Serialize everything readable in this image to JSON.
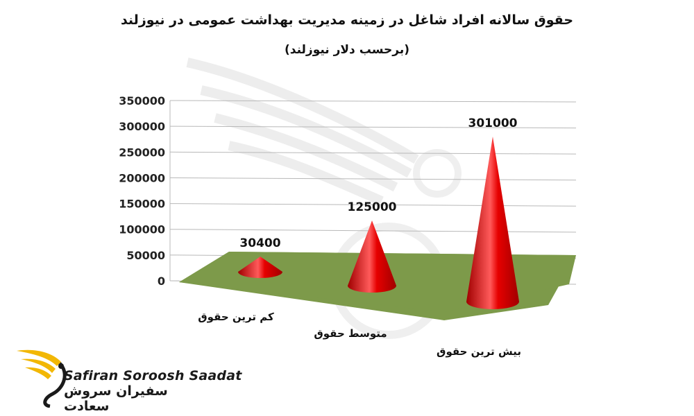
{
  "chart_data": {
    "type": "bar",
    "subtype": "3d-cone",
    "title": "حقوق سالانه افراد شاغل در زمینه مدیریت بهداشت عمومی در نیوزلند",
    "subtitle": "(برحسب دلار نیوزلند)",
    "categories": [
      "کم ترین حقوق",
      "متوسط حقوق",
      "بیش ترین حقوق"
    ],
    "values": [
      30400,
      125000,
      301000
    ],
    "data_labels": [
      "30400",
      "125000",
      "301000"
    ],
    "ylim": [
      0,
      350000
    ],
    "yticks": [
      "0",
      "50000",
      "100000",
      "150000",
      "200000",
      "250000",
      "300000",
      "350000"
    ],
    "grid": true,
    "legend": "none",
    "colors": {
      "cone": "#e60000",
      "cone_light": "#ff5a5a",
      "cone_dark": "#a00000",
      "floor": "#7d9a4a",
      "grid": "#b8b8b8"
    }
  },
  "logo": {
    "latin": "Safiran Soroosh Saadat",
    "persian": "سفیران سروش سعادت",
    "gold": "#f2b705"
  }
}
